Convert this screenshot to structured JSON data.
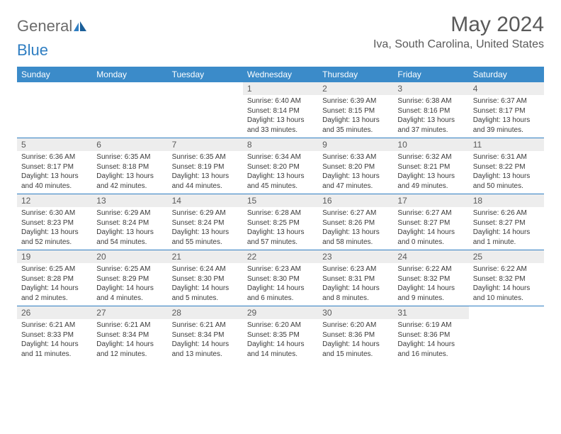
{
  "logo": {
    "general": "General",
    "blue": "Blue"
  },
  "title": "May 2024",
  "location": "Iva, South Carolina, United States",
  "colors": {
    "header_bg": "#3b8bc9",
    "header_text": "#ffffff",
    "accent": "#2f7ec2",
    "daynum_bg": "#ededed",
    "text_muted": "#5a5a5a"
  },
  "day_names": [
    "Sunday",
    "Monday",
    "Tuesday",
    "Wednesday",
    "Thursday",
    "Friday",
    "Saturday"
  ],
  "weeks": [
    [
      {
        "n": "",
        "sr": "",
        "ss": "",
        "dl": ""
      },
      {
        "n": "",
        "sr": "",
        "ss": "",
        "dl": ""
      },
      {
        "n": "",
        "sr": "",
        "ss": "",
        "dl": ""
      },
      {
        "n": "1",
        "sr": "6:40 AM",
        "ss": "8:14 PM",
        "dl": "13 hours and 33 minutes."
      },
      {
        "n": "2",
        "sr": "6:39 AM",
        "ss": "8:15 PM",
        "dl": "13 hours and 35 minutes."
      },
      {
        "n": "3",
        "sr": "6:38 AM",
        "ss": "8:16 PM",
        "dl": "13 hours and 37 minutes."
      },
      {
        "n": "4",
        "sr": "6:37 AM",
        "ss": "8:17 PM",
        "dl": "13 hours and 39 minutes."
      }
    ],
    [
      {
        "n": "5",
        "sr": "6:36 AM",
        "ss": "8:17 PM",
        "dl": "13 hours and 40 minutes."
      },
      {
        "n": "6",
        "sr": "6:35 AM",
        "ss": "8:18 PM",
        "dl": "13 hours and 42 minutes."
      },
      {
        "n": "7",
        "sr": "6:35 AM",
        "ss": "8:19 PM",
        "dl": "13 hours and 44 minutes."
      },
      {
        "n": "8",
        "sr": "6:34 AM",
        "ss": "8:20 PM",
        "dl": "13 hours and 45 minutes."
      },
      {
        "n": "9",
        "sr": "6:33 AM",
        "ss": "8:20 PM",
        "dl": "13 hours and 47 minutes."
      },
      {
        "n": "10",
        "sr": "6:32 AM",
        "ss": "8:21 PM",
        "dl": "13 hours and 49 minutes."
      },
      {
        "n": "11",
        "sr": "6:31 AM",
        "ss": "8:22 PM",
        "dl": "13 hours and 50 minutes."
      }
    ],
    [
      {
        "n": "12",
        "sr": "6:30 AM",
        "ss": "8:23 PM",
        "dl": "13 hours and 52 minutes."
      },
      {
        "n": "13",
        "sr": "6:29 AM",
        "ss": "8:24 PM",
        "dl": "13 hours and 54 minutes."
      },
      {
        "n": "14",
        "sr": "6:29 AM",
        "ss": "8:24 PM",
        "dl": "13 hours and 55 minutes."
      },
      {
        "n": "15",
        "sr": "6:28 AM",
        "ss": "8:25 PM",
        "dl": "13 hours and 57 minutes."
      },
      {
        "n": "16",
        "sr": "6:27 AM",
        "ss": "8:26 PM",
        "dl": "13 hours and 58 minutes."
      },
      {
        "n": "17",
        "sr": "6:27 AM",
        "ss": "8:27 PM",
        "dl": "14 hours and 0 minutes."
      },
      {
        "n": "18",
        "sr": "6:26 AM",
        "ss": "8:27 PM",
        "dl": "14 hours and 1 minute."
      }
    ],
    [
      {
        "n": "19",
        "sr": "6:25 AM",
        "ss": "8:28 PM",
        "dl": "14 hours and 2 minutes."
      },
      {
        "n": "20",
        "sr": "6:25 AM",
        "ss": "8:29 PM",
        "dl": "14 hours and 4 minutes."
      },
      {
        "n": "21",
        "sr": "6:24 AM",
        "ss": "8:30 PM",
        "dl": "14 hours and 5 minutes."
      },
      {
        "n": "22",
        "sr": "6:23 AM",
        "ss": "8:30 PM",
        "dl": "14 hours and 6 minutes."
      },
      {
        "n": "23",
        "sr": "6:23 AM",
        "ss": "8:31 PM",
        "dl": "14 hours and 8 minutes."
      },
      {
        "n": "24",
        "sr": "6:22 AM",
        "ss": "8:32 PM",
        "dl": "14 hours and 9 minutes."
      },
      {
        "n": "25",
        "sr": "6:22 AM",
        "ss": "8:32 PM",
        "dl": "14 hours and 10 minutes."
      }
    ],
    [
      {
        "n": "26",
        "sr": "6:21 AM",
        "ss": "8:33 PM",
        "dl": "14 hours and 11 minutes."
      },
      {
        "n": "27",
        "sr": "6:21 AM",
        "ss": "8:34 PM",
        "dl": "14 hours and 12 minutes."
      },
      {
        "n": "28",
        "sr": "6:21 AM",
        "ss": "8:34 PM",
        "dl": "14 hours and 13 minutes."
      },
      {
        "n": "29",
        "sr": "6:20 AM",
        "ss": "8:35 PM",
        "dl": "14 hours and 14 minutes."
      },
      {
        "n": "30",
        "sr": "6:20 AM",
        "ss": "8:36 PM",
        "dl": "14 hours and 15 minutes."
      },
      {
        "n": "31",
        "sr": "6:19 AM",
        "ss": "8:36 PM",
        "dl": "14 hours and 16 minutes."
      },
      {
        "n": "",
        "sr": "",
        "ss": "",
        "dl": ""
      }
    ]
  ],
  "labels": {
    "sunrise": "Sunrise:",
    "sunset": "Sunset:",
    "daylight": "Daylight:"
  }
}
